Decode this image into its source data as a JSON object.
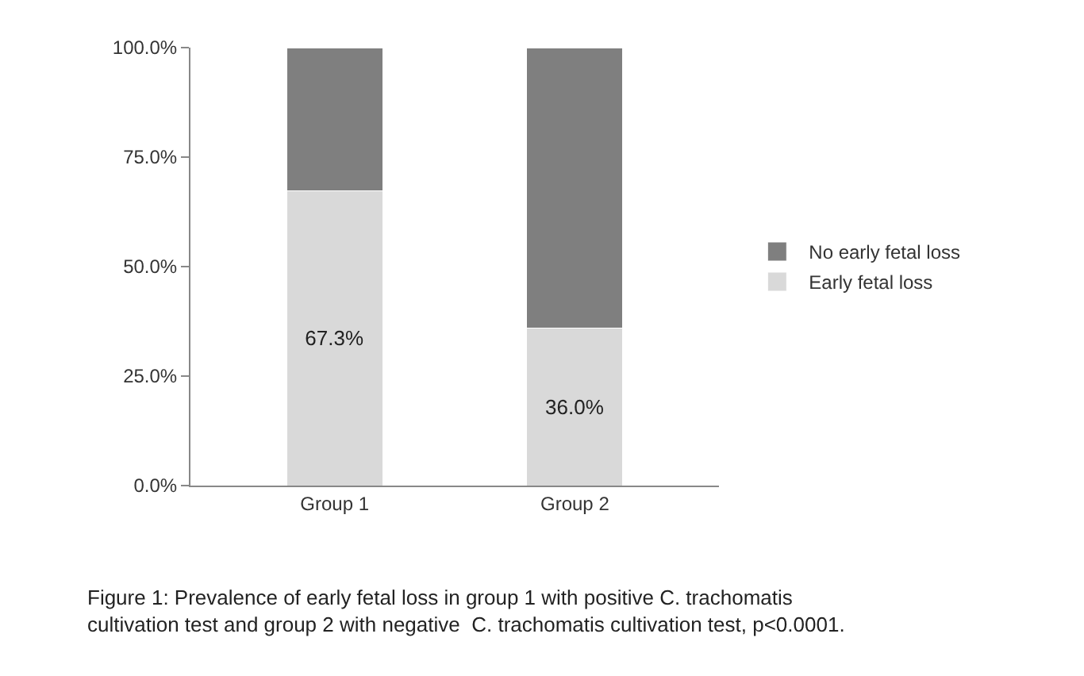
{
  "chart_data": {
    "type": "bar",
    "stacked": true,
    "categories": [
      "Group 1",
      "Group 2"
    ],
    "series": [
      {
        "name": "Early fetal loss",
        "color": "#d9d9d9",
        "values": [
          67.3,
          36.0
        ],
        "value_labels": [
          "67.3%",
          "36.0%"
        ]
      },
      {
        "name": "No early fetal loss",
        "color": "#7f7f7f",
        "values": [
          32.7,
          64.0
        ],
        "value_labels": [
          null,
          null
        ]
      }
    ],
    "ylim": [
      0,
      100
    ],
    "yticks": [
      {
        "value": 0,
        "label": "0.0%"
      },
      {
        "value": 25,
        "label": "25.0%"
      },
      {
        "value": 50,
        "label": "50.0%"
      },
      {
        "value": 75,
        "label": "75.0%"
      },
      {
        "value": 100,
        "label": "100.0%"
      }
    ],
    "legend": "right",
    "annotations": [
      "Figure 1: Prevalence of early fetal loss in group 1 with positive C. trachomatis cultivation test and group 2 with negative  C. trachomatis cultivation test, p<0.0001."
    ]
  }
}
